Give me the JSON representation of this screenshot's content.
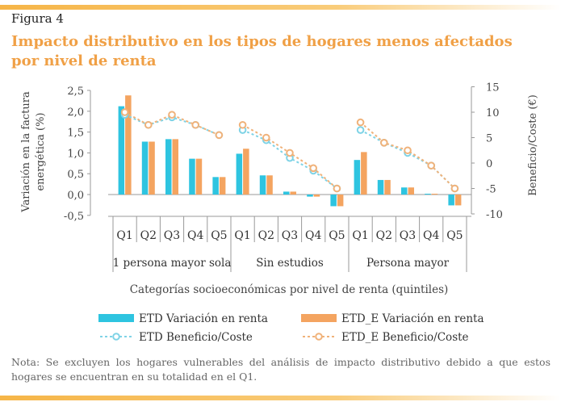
{
  "figure_label": "Figura 4",
  "title": "Impacto distributivo en los tipos de hogares menos afectados por nivel de renta",
  "note": "Nota: Se excluyen los hogares vulnerables del análisis de impacto distributivo debido a que estos hogares se encuentran en su totalidad en el Q1.",
  "colors": {
    "etd_bar": "#2ec4e0",
    "etd_e_bar": "#f4a460",
    "etd_line": "#7fd3e6",
    "etd_e_line": "#f0b27a",
    "accent": "#f0a046"
  },
  "chart_data": {
    "type": "bar",
    "categories": [
      "Q1",
      "Q2",
      "Q3",
      "Q4",
      "Q5",
      "Q1",
      "Q2",
      "Q3",
      "Q4",
      "Q5",
      "Q1",
      "Q2",
      "Q3",
      "Q4",
      "Q5"
    ],
    "groups": [
      "1 persona mayor sola",
      "Sin estudios",
      "Persona mayor"
    ],
    "xlabel": "Categorías socioeconómicas por nivel de renta (quintiles)",
    "ylabel_left": "Variación en la factura energética (%)",
    "ylabel_right": "Beneficio/Coste (€)",
    "ylim_left": [
      -0.5,
      2.5
    ],
    "yticks_left": [
      "2,5",
      "2,0",
      "1,5",
      "1,0",
      "0,5",
      "0,0",
      "-0,5"
    ],
    "ylim_right": [
      -10,
      15
    ],
    "yticks_right": [
      "15",
      "10",
      "5",
      "0",
      "-5",
      "-10"
    ],
    "series": [
      {
        "name": "ETD Variación en renta",
        "kind": "bar",
        "axis": "left",
        "values": [
          2.12,
          1.27,
          1.33,
          0.86,
          0.42,
          0.98,
          0.46,
          0.07,
          -0.05,
          -0.28,
          0.83,
          0.35,
          0.17,
          0.02,
          -0.26
        ]
      },
      {
        "name": "ETD_E Variación en renta",
        "kind": "bar",
        "axis": "left",
        "values": [
          2.38,
          1.27,
          1.33,
          0.86,
          0.42,
          1.1,
          0.46,
          0.07,
          -0.05,
          -0.28,
          1.02,
          0.35,
          0.17,
          0.02,
          -0.26
        ]
      },
      {
        "name": "ETD Beneficio/Coste",
        "kind": "line",
        "axis": "right",
        "values": [
          9.5,
          7.5,
          9.0,
          7.5,
          5.5,
          6.5,
          4.5,
          1.0,
          -1.5,
          -5.0,
          6.5,
          4.0,
          2.0,
          -0.5,
          -5.0
        ]
      },
      {
        "name": "ETD_E Beneficio/Coste",
        "kind": "line",
        "axis": "right",
        "values": [
          10.0,
          7.5,
          9.5,
          7.5,
          5.5,
          7.5,
          5.0,
          2.0,
          -1.0,
          -5.0,
          8.0,
          4.0,
          2.5,
          -0.5,
          -5.0
        ]
      }
    ],
    "legend": [
      "ETD Variación en renta",
      "ETD_E Variación en renta",
      "ETD Beneficio/Coste",
      "ETD_E Beneficio/Coste"
    ],
    "legend_position": "bottom",
    "grid": false
  }
}
